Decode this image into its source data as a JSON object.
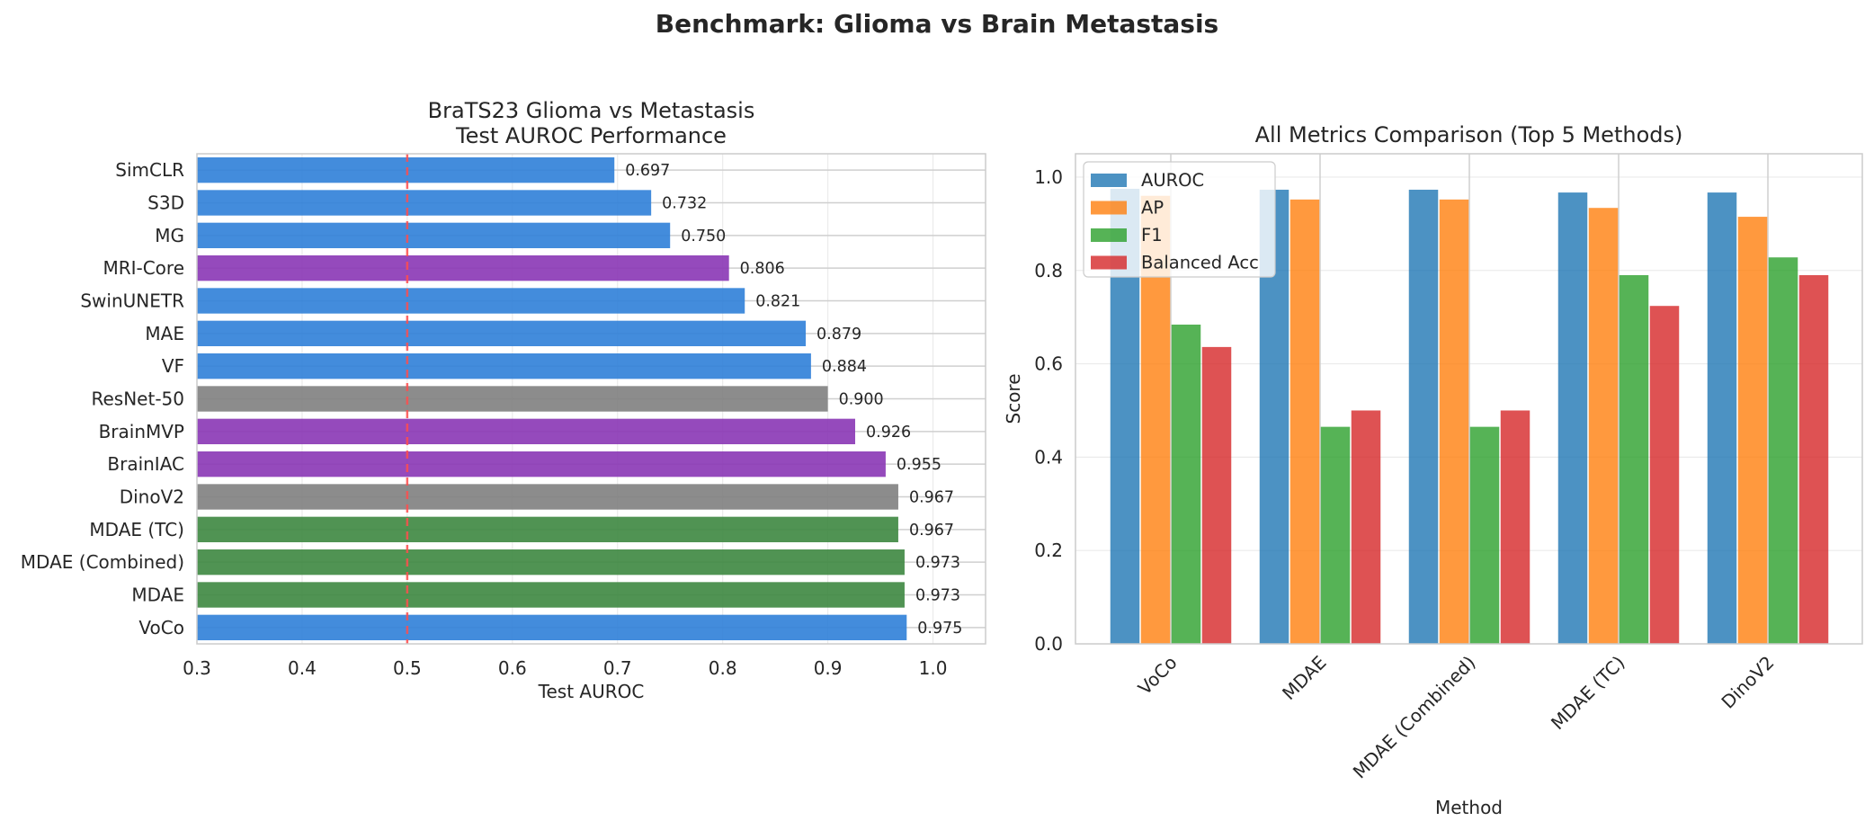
{
  "figure": {
    "suptitle": "Benchmark: Glioma vs Brain Metastasis"
  },
  "chart_data": [
    {
      "type": "bar",
      "orientation": "horizontal",
      "title": "BraTS23 Glioma vs Metastasis\nTest AUROC Performance",
      "xlabel": "Test AUROC",
      "ylabel": "",
      "xlim": [
        0.3,
        1.05
      ],
      "xticks": [
        "0.3",
        "0.4",
        "0.5",
        "0.6",
        "0.7",
        "0.8",
        "0.9",
        "1.0"
      ],
      "grid": true,
      "reference_line": {
        "x": 0.5,
        "color": "#ff4d4d",
        "style": "dashed"
      },
      "categories": [
        "SimCLR",
        "S3D",
        "MG",
        "MRI-Core",
        "SwinUNETR",
        "MAE",
        "VF",
        "ResNet-50",
        "BrainMVP",
        "BrainIAC",
        "DinoV2",
        "MDAE (TC)",
        "MDAE (Combined)",
        "MDAE",
        "VoCo"
      ],
      "values": [
        0.697,
        0.732,
        0.75,
        0.806,
        0.821,
        0.879,
        0.884,
        0.9,
        0.926,
        0.955,
        0.967,
        0.967,
        0.973,
        0.973,
        0.975
      ],
      "value_labels": [
        "0.697",
        "0.732",
        "0.750",
        "0.806",
        "0.821",
        "0.879",
        "0.884",
        "0.900",
        "0.926",
        "0.955",
        "0.967",
        "0.967",
        "0.973",
        "0.973",
        "0.975"
      ],
      "colors": [
        "#2f80d8",
        "#2f80d8",
        "#2f80d8",
        "#8a36b5",
        "#2f80d8",
        "#2f80d8",
        "#2f80d8",
        "#7f7f7f",
        "#8a36b5",
        "#8a36b5",
        "#7f7f7f",
        "#3d8740",
        "#3d8740",
        "#3d8740",
        "#2f80d8"
      ]
    },
    {
      "type": "bar",
      "orientation": "vertical",
      "title": "All Metrics Comparison (Top 5 Methods)",
      "xlabel": "Method",
      "ylabel": "Score",
      "ylim": [
        0,
        1.05
      ],
      "yticks": [
        "0.0",
        "0.2",
        "0.4",
        "0.6",
        "0.8",
        "1.0"
      ],
      "grid": true,
      "legend_position": "upper-left",
      "categories": [
        "VoCo",
        "MDAE",
        "MDAE (Combined)",
        "MDAE (TC)",
        "DinoV2"
      ],
      "series": [
        {
          "name": "AUROC",
          "color": "#1f77b4",
          "values": [
            0.975,
            0.973,
            0.973,
            0.967,
            0.967
          ]
        },
        {
          "name": "AP",
          "color": "#ff7f0e",
          "values": [
            0.96,
            0.952,
            0.952,
            0.934,
            0.915
          ]
        },
        {
          "name": "F1",
          "color": "#2ca02c",
          "values": [
            0.684,
            0.465,
            0.465,
            0.79,
            0.828
          ]
        },
        {
          "name": "Balanced Acc",
          "color": "#d62728",
          "values": [
            0.636,
            0.5,
            0.5,
            0.724,
            0.79
          ]
        }
      ]
    }
  ]
}
